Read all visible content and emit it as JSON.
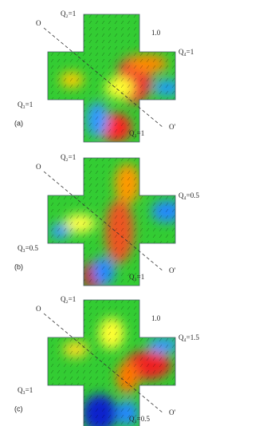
{
  "panels": [
    {
      "tag": "(a)",
      "o": "O",
      "o_prime": "O'",
      "q2": "Q₂=1",
      "scale": "1.0",
      "q4": "Q₄=1",
      "q3": "Q₃=1",
      "q1": "Q₁=1"
    },
    {
      "tag": "(b)",
      "o": "O",
      "o_prime": "O'",
      "q2": "Q₂=1",
      "q4": "Q₄=0.5",
      "q3": "Q₃=0.5",
      "q1": "Q₁=1"
    },
    {
      "tag": "(c)",
      "o": "O",
      "o_prime": "O'",
      "q2": "Q₂=1",
      "scale": "1.0",
      "q4": "Q₄=1.5",
      "q3": "Q₃=1",
      "q1": "Q₁=0.5"
    }
  ]
}
